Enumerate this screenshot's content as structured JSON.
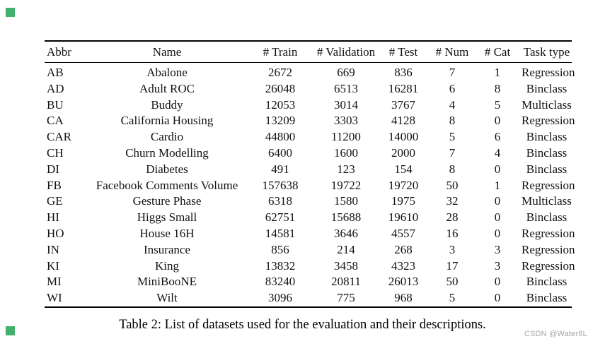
{
  "decoration": {
    "corner_square_color": "#43b06d"
  },
  "table": {
    "columns": [
      "Abbr",
      "Name",
      "# Train",
      "# Validation",
      "# Test",
      "# Num",
      "# Cat",
      "Task type"
    ],
    "rows": [
      [
        "AB",
        "Abalone",
        "2672",
        "669",
        "836",
        "7",
        "1",
        "Regression"
      ],
      [
        "AD",
        "Adult ROC",
        "26048",
        "6513",
        "16281",
        "6",
        "8",
        "Binclass"
      ],
      [
        "BU",
        "Buddy",
        "12053",
        "3014",
        "3767",
        "4",
        "5",
        "Multiclass"
      ],
      [
        "CA",
        "California Housing",
        "13209",
        "3303",
        "4128",
        "8",
        "0",
        "Regression"
      ],
      [
        "CAR",
        "Cardio",
        "44800",
        "11200",
        "14000",
        "5",
        "6",
        "Binclass"
      ],
      [
        "CH",
        "Churn Modelling",
        "6400",
        "1600",
        "2000",
        "7",
        "4",
        "Binclass"
      ],
      [
        "DI",
        "Diabetes",
        "491",
        "123",
        "154",
        "8",
        "0",
        "Binclass"
      ],
      [
        "FB",
        "Facebook Comments Volume",
        "157638",
        "19722",
        "19720",
        "50",
        "1",
        "Regression"
      ],
      [
        "GE",
        "Gesture Phase",
        "6318",
        "1580",
        "1975",
        "32",
        "0",
        "Multiclass"
      ],
      [
        "HI",
        "Higgs Small",
        "62751",
        "15688",
        "19610",
        "28",
        "0",
        "Binclass"
      ],
      [
        "HO",
        "House 16H",
        "14581",
        "3646",
        "4557",
        "16",
        "0",
        "Regression"
      ],
      [
        "IN",
        "Insurance",
        "856",
        "214",
        "268",
        "3",
        "3",
        "Regression"
      ],
      [
        "KI",
        "King",
        "13832",
        "3458",
        "4323",
        "17",
        "3",
        "Regression"
      ],
      [
        "MI",
        "MiniBooNE",
        "83240",
        "20811",
        "26013",
        "50",
        "0",
        "Binclass"
      ],
      [
        "WI",
        "Wilt",
        "3096",
        "775",
        "968",
        "5",
        "0",
        "Binclass"
      ]
    ]
  },
  "caption": "Table 2: List of datasets used for the evaluation and their descriptions.",
  "watermark": {
    "text": "CSDN @Water8L"
  }
}
